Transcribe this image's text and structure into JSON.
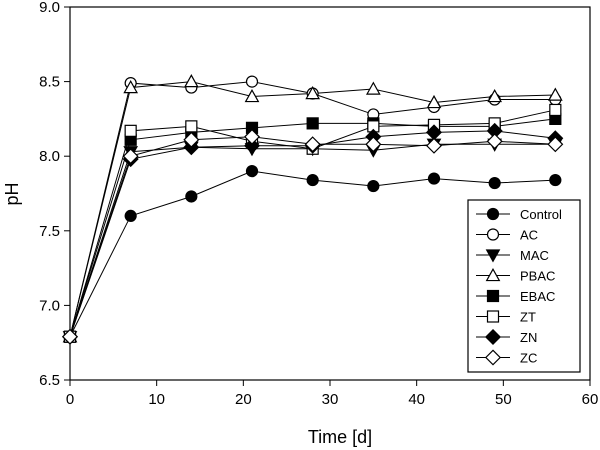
{
  "chart_data": {
    "type": "scatter",
    "xlabel": "Time [d]",
    "ylabel": "pH",
    "xlim": [
      0,
      60
    ],
    "ylim": [
      6.5,
      9.0
    ],
    "x_ticks": [
      "0",
      "10",
      "20",
      "30",
      "40",
      "50",
      "60"
    ],
    "y_ticks": [
      "6.5",
      "7.0",
      "7.5",
      "8.0",
      "8.5",
      "9.0"
    ],
    "x_tick_values": [
      0,
      10,
      20,
      30,
      40,
      50,
      60
    ],
    "y_tick_values": [
      6.5,
      7.0,
      7.5,
      8.0,
      8.5,
      9.0
    ],
    "grid": false,
    "legend_position": "bottom-right",
    "x": [
      0,
      7,
      14,
      21,
      28,
      35,
      42,
      49,
      56
    ],
    "series": [
      {
        "name": "Control",
        "marker": "circle",
        "filled": true,
        "values": [
          6.79,
          7.6,
          7.73,
          7.9,
          7.84,
          7.8,
          7.85,
          7.82,
          7.84
        ]
      },
      {
        "name": "AC",
        "marker": "circle",
        "filled": false,
        "values": [
          6.79,
          8.49,
          8.46,
          8.5,
          8.42,
          8.28,
          8.33,
          8.38,
          8.38
        ]
      },
      {
        "name": "MAC",
        "marker": "triangle-down",
        "filled": true,
        "values": [
          6.79,
          8.03,
          8.06,
          8.05,
          8.05,
          8.04,
          8.08,
          8.08,
          8.08
        ]
      },
      {
        "name": "PBAC",
        "marker": "triangle-up",
        "filled": false,
        "values": [
          6.79,
          8.46,
          8.5,
          8.4,
          8.42,
          8.45,
          8.36,
          8.4,
          8.41
        ]
      },
      {
        "name": "EBAC",
        "marker": "square",
        "filled": true,
        "values": [
          6.79,
          8.11,
          8.16,
          8.19,
          8.22,
          8.22,
          8.2,
          8.2,
          8.25
        ]
      },
      {
        "name": "ZT",
        "marker": "square",
        "filled": false,
        "values": [
          6.79,
          8.17,
          8.2,
          8.1,
          8.05,
          8.2,
          8.21,
          8.22,
          8.31
        ]
      },
      {
        "name": "ZN",
        "marker": "diamond",
        "filled": true,
        "values": [
          6.79,
          7.98,
          8.06,
          8.07,
          8.07,
          8.13,
          8.16,
          8.17,
          8.12
        ]
      },
      {
        "name": "ZC",
        "marker": "diamond",
        "filled": false,
        "values": [
          6.79,
          8.0,
          8.11,
          8.13,
          8.08,
          8.08,
          8.07,
          8.1,
          8.08
        ]
      }
    ],
    "colors": {
      "line": "#000000",
      "background": "#ffffff"
    }
  }
}
